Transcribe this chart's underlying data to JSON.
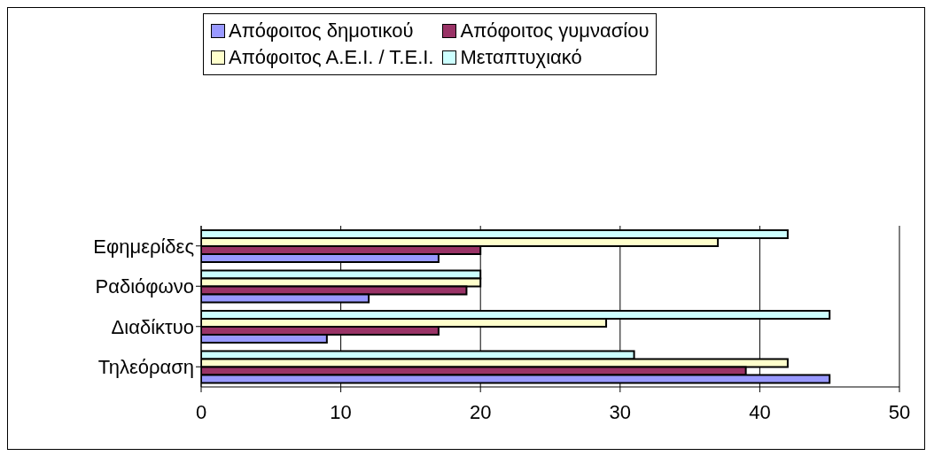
{
  "chart_data": {
    "type": "bar",
    "orientation": "horizontal",
    "categories": [
      "Εφημερίδες",
      "Ραδιόφωνο",
      "Διαδίκτυο",
      "Τηλεόραση"
    ],
    "series": [
      {
        "name": "Απόφοιτος δημοτικού",
        "color": "#9999ff",
        "values": [
          17,
          12,
          9,
          45
        ]
      },
      {
        "name": "Απόφοιτος γυμνασίου",
        "color": "#993366",
        "values": [
          20,
          19,
          17,
          39
        ]
      },
      {
        "name": "Απόφοιτος Α.Ε.Ι. / Τ.Ε.Ι.",
        "color": "#ffffcc",
        "values": [
          37,
          20,
          29,
          42
        ]
      },
      {
        "name": "Μεταπτυχιακό",
        "color": "#ccffff",
        "values": [
          42,
          20,
          45,
          31
        ]
      }
    ],
    "xlim": [
      0,
      50
    ],
    "xticks": [
      0,
      10,
      20,
      30,
      40,
      50
    ],
    "grid": "x",
    "legend": "top"
  }
}
